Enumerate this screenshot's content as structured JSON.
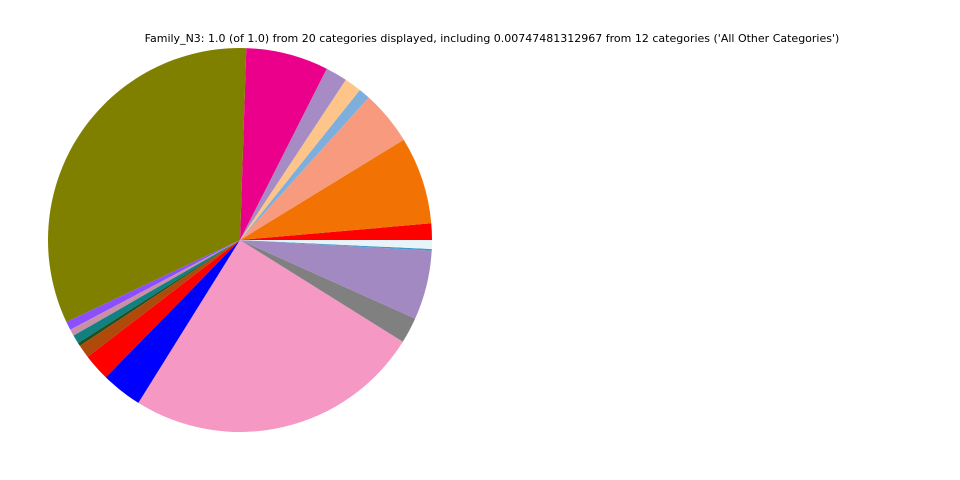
{
  "chart_data": {
    "type": "pie",
    "title": "Family_N3: 1.0 (of 1.0) from 20 categories displayed, including 0.00747481312967 from 12 categories ('All Other Categories')",
    "values": [
      0.0139,
      0.0736,
      0.0456,
      0.0097,
      0.0144,
      0.0183,
      0.0694,
      0.3256,
      0.0072,
      0.0056,
      0.0072,
      0.0028,
      0.0111,
      0.0228,
      0.0344,
      0.25,
      0.0217,
      0.0583,
      0.0014,
      0.0075
    ],
    "colors": [
      "#ff0000",
      "#f27304",
      "#f89a7e",
      "#7eaedc",
      "#fdc58a",
      "#a68bc4",
      "#eb008b",
      "#808000",
      "#8b4fff",
      "#c98fa6",
      "#108080",
      "#1f5020",
      "#b04a0a",
      "#ff0000",
      "#0000ff",
      "#f598c4",
      "#808080",
      "#a389c2",
      "#3b9bd0",
      "#e8f4f8"
    ]
  }
}
